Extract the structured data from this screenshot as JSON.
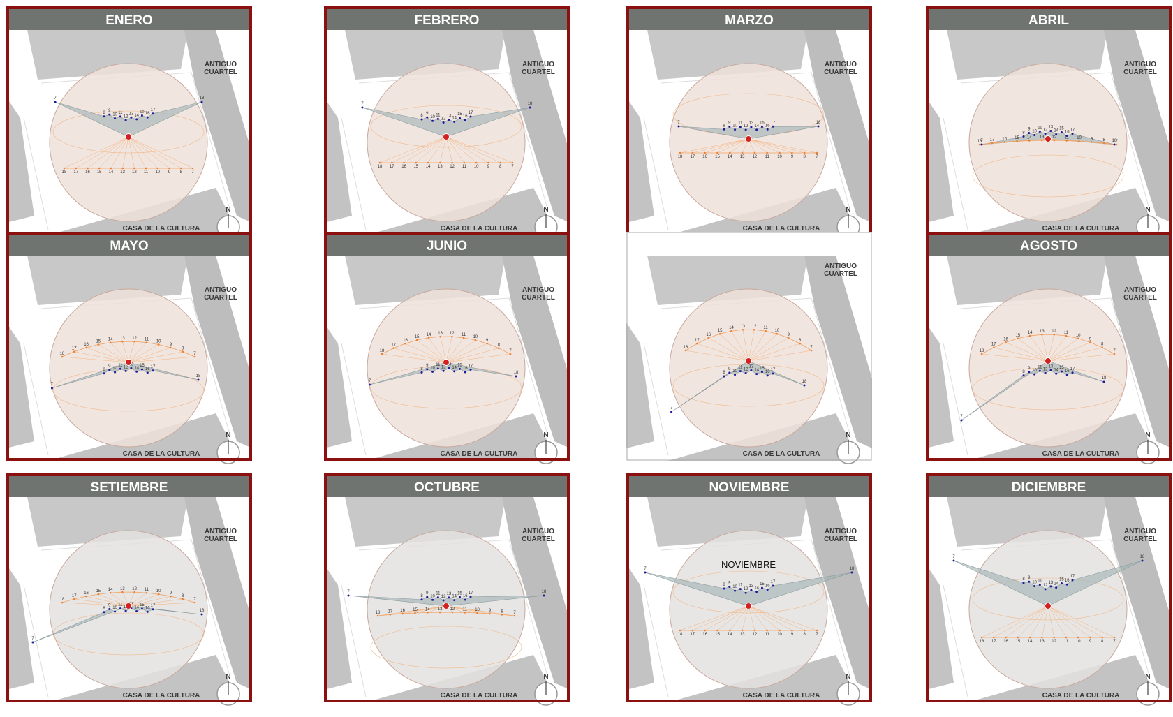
{
  "panels": [
    {
      "title": "ENERO"
    },
    {
      "title": "FEBRERO"
    },
    {
      "title": "MARZO"
    },
    {
      "title": "ABRIL"
    },
    {
      "title": "MAYO"
    },
    {
      "title": "JUNIO"
    },
    {
      "header": false
    },
    {
      "title": "AGOSTO"
    },
    {
      "title": "SETIEMBRE"
    },
    {
      "title": "OCTUBRE"
    },
    {
      "title": "NOVIEMBRE",
      "annotation": "NOVIEMBRE"
    },
    {
      "title": "DICIEMBRE"
    }
  ],
  "building_ne": [
    "ANTIGUO",
    "CUARTEL"
  ],
  "building_s": "CASA DE LA CULTURA",
  "north": "N",
  "hour_labels": [
    "7",
    "8",
    "9",
    "10",
    "11",
    "12",
    "13",
    "14",
    "15",
    "16",
    "17",
    "18"
  ]
}
